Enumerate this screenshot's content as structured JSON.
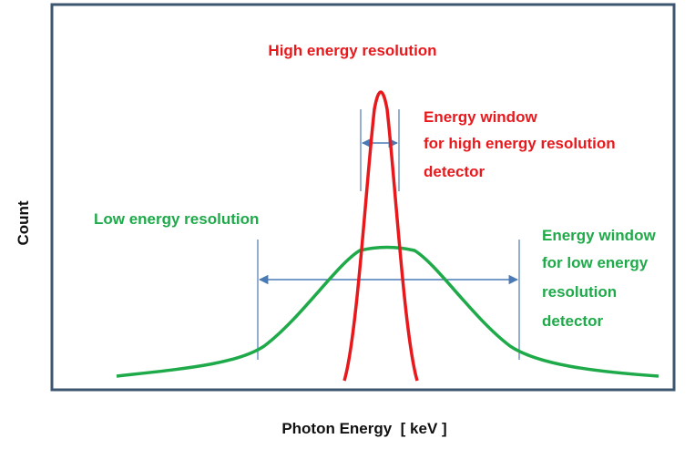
{
  "diagram": {
    "y_axis_label": "Count",
    "x_axis_label": "Photon Energy  [ keV ]",
    "high_resolution_label": "High energy resolution",
    "low_resolution_label": "Low energy resolution",
    "high_window_label": [
      "Energy window",
      "for high energy resolution",
      "detector"
    ],
    "low_window_label": [
      "Energy window",
      "for low energy",
      "resolution",
      "detector"
    ]
  }
}
